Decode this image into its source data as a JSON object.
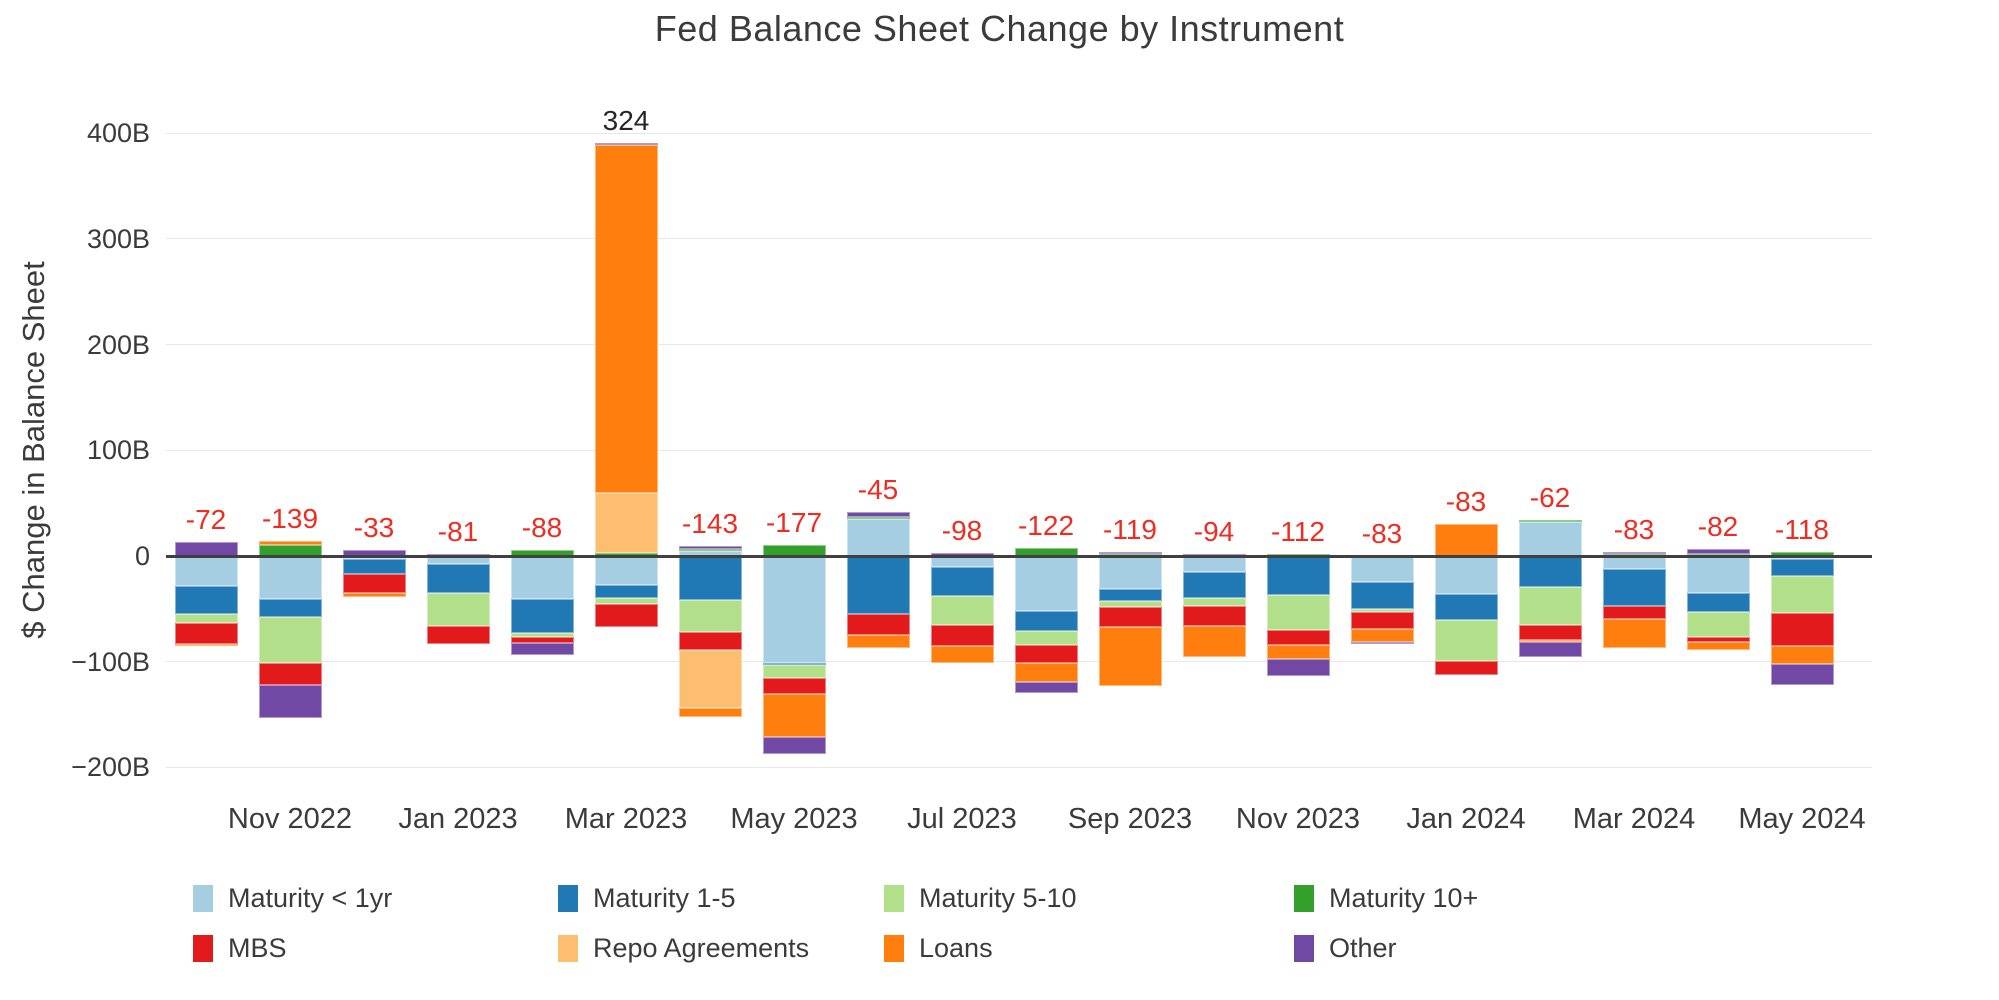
{
  "page": {
    "background": "#ffffff"
  },
  "chart_data": {
    "type": "bar",
    "stacked": true,
    "title": "Fed Balance Sheet Change by Instrument",
    "ylabel": "$ Change in Balance Sheet",
    "xlabel": "",
    "grid": true,
    "legend_position": "bottom",
    "ylim": [
      -230,
      440
    ],
    "yticks": [
      {
        "value": 400,
        "label": "400B"
      },
      {
        "value": 300,
        "label": "300B"
      },
      {
        "value": 200,
        "label": "200B"
      },
      {
        "value": 100,
        "label": "100B"
      },
      {
        "value": 0,
        "label": "0"
      },
      {
        "value": -100,
        "label": "−100B"
      },
      {
        "value": -200,
        "label": "−200B"
      }
    ],
    "visible_x_ticks": [
      "Nov 2022",
      "Jan 2023",
      "Mar 2023",
      "May 2023",
      "Jul 2023",
      "Sep 2023",
      "Nov 2023",
      "Jan 2024",
      "Mar 2024",
      "May 2024"
    ],
    "series": [
      {
        "key": "lt1",
        "label": "Maturity < 1yr",
        "color": "#a6cee3"
      },
      {
        "key": "m15",
        "label": "Maturity 1-5",
        "color": "#2079b4"
      },
      {
        "key": "m510",
        "label": "Maturity 5-10",
        "color": "#b2df8a"
      },
      {
        "key": "m10",
        "label": "Maturity 10+",
        "color": "#33a02c"
      },
      {
        "key": "mbs",
        "label": "MBS",
        "color": "#e31a1c"
      },
      {
        "key": "repo",
        "label": "Repo Agreements",
        "color": "#fdbf6f"
      },
      {
        "key": "loans",
        "label": "Loans",
        "color": "#ff7e0e"
      },
      {
        "key": "other",
        "label": "Other",
        "color": "#7148a4"
      }
    ],
    "value_label_colors": {
      "negative": "#ee2d22",
      "positive": "#262626"
    },
    "bars": [
      {
        "x_label": "",
        "value_label": "-72",
        "total": -72,
        "segments": {
          "lt1": -28,
          "m15": -27,
          "m510": -8,
          "mbs": -20,
          "loans": -2,
          "other": 13
        }
      },
      {
        "x_label": "Nov 2022",
        "value_label": "-139",
        "total": -139,
        "segments": {
          "lt1": -41,
          "m15": -17,
          "m510": -43,
          "m10": 10,
          "mbs": -21,
          "loans": 4,
          "other": -31
        }
      },
      {
        "x_label": "",
        "value_label": "-33",
        "total": -33,
        "segments": {
          "lt1": -3,
          "m15": -14,
          "mbs": -18,
          "loans": -4,
          "other": 6
        }
      },
      {
        "x_label": "Jan 2023",
        "value_label": "-81",
        "total": -81,
        "segments": {
          "lt1": -8,
          "m15": -27,
          "m510": -31,
          "mbs": -17,
          "other": 2
        }
      },
      {
        "x_label": "",
        "value_label": "-88",
        "total": -88,
        "segments": {
          "lt1": -41,
          "m15": -32,
          "m510": -4,
          "m10": 6,
          "mbs": -5,
          "other": -12
        }
      },
      {
        "x_label": "Mar 2023",
        "value_label": "324",
        "total": 324,
        "segments": {
          "lt1": -27,
          "m15": -13,
          "m510": -5,
          "m10": 3,
          "mbs": -22,
          "repo": 57,
          "loans": 329,
          "other": 2
        }
      },
      {
        "x_label": "",
        "value_label": "-143",
        "total": -143,
        "segments": {
          "lt1": 5,
          "m15": -42,
          "m510": -30,
          "m10": 2,
          "mbs": -17,
          "repo": -55,
          "loans": -8,
          "other": 2
        }
      },
      {
        "x_label": "May 2023",
        "value_label": "-177",
        "total": -177,
        "segments": {
          "lt1": -101,
          "m15": -2,
          "m510": -12,
          "m10": 10,
          "mbs": -16,
          "loans": -40,
          "other": -16
        }
      },
      {
        "x_label": "",
        "value_label": "-45",
        "total": -45,
        "segments": {
          "lt1": 35,
          "m15": -55,
          "m10": 2,
          "mbs": -20,
          "loans": -12,
          "other": 5
        }
      },
      {
        "x_label": "Jul 2023",
        "value_label": "-98",
        "total": -98,
        "segments": {
          "lt1": -10,
          "m15": -28,
          "m510": -27,
          "mbs": -20,
          "loans": -16,
          "other": 3
        }
      },
      {
        "x_label": "",
        "value_label": "-122",
        "total": -122,
        "segments": {
          "lt1": -52,
          "m15": -19,
          "m510": -13,
          "m10": 8,
          "mbs": -17,
          "loans": -18,
          "other": -11
        }
      },
      {
        "x_label": "Sep 2023",
        "value_label": "-119",
        "total": -119,
        "segments": {
          "lt1": -31,
          "m15": -12,
          "m510": -5,
          "m10": 2,
          "mbs": -19,
          "loans": -56,
          "other": 2
        }
      },
      {
        "x_label": "",
        "value_label": "-94",
        "total": -94,
        "segments": {
          "lt1": -15,
          "m15": -25,
          "m510": -7,
          "mbs": -19,
          "loans": -30,
          "other": 2
        }
      },
      {
        "x_label": "Nov 2023",
        "value_label": "-112",
        "total": -112,
        "segments": {
          "m15": -37,
          "m510": -33,
          "m10": 2,
          "mbs": -14,
          "loans": -13,
          "other": -17
        }
      },
      {
        "x_label": "",
        "value_label": "-83",
        "total": -83,
        "segments": {
          "lt1": -25,
          "m15": -25,
          "m510": -3,
          "mbs": -16,
          "loans": -12,
          "other": -2
        }
      },
      {
        "x_label": "Jan 2024",
        "value_label": "-83",
        "total": -83,
        "segments": {
          "lt1": -36,
          "m15": -25,
          "m510": -38,
          "mbs": -14,
          "loans": 30
        }
      },
      {
        "x_label": "",
        "value_label": "-62",
        "total": -62,
        "segments": {
          "lt1": 32,
          "m15": -29,
          "m510": -36,
          "m10": 2,
          "mbs": -14,
          "loans": -2,
          "other": -15
        }
      },
      {
        "x_label": "Mar 2024",
        "value_label": "-83",
        "total": -83,
        "segments": {
          "lt1": -12,
          "m15": -35,
          "m10": 2,
          "mbs": -13,
          "loans": -27,
          "other": 2
        }
      },
      {
        "x_label": "",
        "value_label": "-82",
        "total": -82,
        "segments": {
          "lt1": -35,
          "m15": -18,
          "m510": -24,
          "m10": 2,
          "mbs": -4,
          "loans": -8,
          "other": 5
        }
      },
      {
        "x_label": "May 2024",
        "value_label": "-118",
        "total": -118,
        "segments": {
          "lt1": -3,
          "m15": -16,
          "m510": -35,
          "m10": 4,
          "mbs": -31,
          "loans": -17,
          "other": -20
        }
      }
    ]
  }
}
